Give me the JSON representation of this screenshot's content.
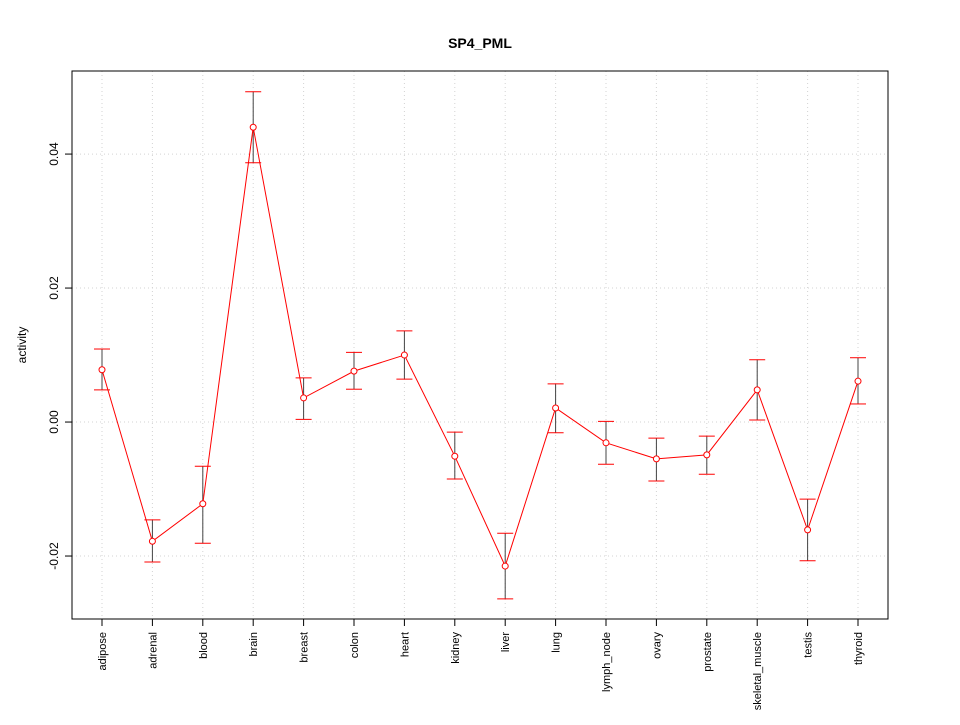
{
  "chart_data": {
    "type": "line",
    "title": "SP4_PML",
    "xlabel": "",
    "ylabel": "activity",
    "ylim": [
      -0.0294,
      0.0524
    ],
    "yticks": [
      -0.02,
      0.0,
      0.02,
      0.04
    ],
    "ytick_labels": [
      "-0.02",
      "0.00",
      "0.02",
      "0.04"
    ],
    "grid": true,
    "categories": [
      "adipose",
      "adrenal",
      "blood",
      "brain",
      "breast",
      "colon",
      "heart",
      "kidney",
      "liver",
      "lung",
      "lymph_node",
      "ovary",
      "prostate",
      "skeletal_muscle",
      "testis",
      "thyroid"
    ],
    "series": [
      {
        "name": "activity",
        "color": "#ff0000",
        "values": [
          0.0078,
          -0.0178,
          -0.0122,
          0.044,
          0.0036,
          0.0076,
          0.01,
          -0.0051,
          -0.0215,
          0.0021,
          -0.0031,
          -0.0055,
          -0.0049,
          0.0048,
          -0.0161,
          0.0061
        ],
        "upper": [
          0.0109,
          -0.0146,
          -0.0066,
          0.0493,
          0.0066,
          0.0104,
          0.0136,
          -0.0015,
          -0.0166,
          0.0057,
          0.0001,
          -0.0024,
          -0.0021,
          0.0093,
          -0.0115,
          0.0096
        ],
        "lower": [
          0.0048,
          -0.0209,
          -0.0181,
          0.0387,
          0.0004,
          0.0049,
          0.0064,
          -0.0085,
          -0.0264,
          -0.0016,
          -0.0063,
          -0.0088,
          -0.0078,
          0.0003,
          -0.0207,
          0.0027
        ]
      }
    ]
  }
}
